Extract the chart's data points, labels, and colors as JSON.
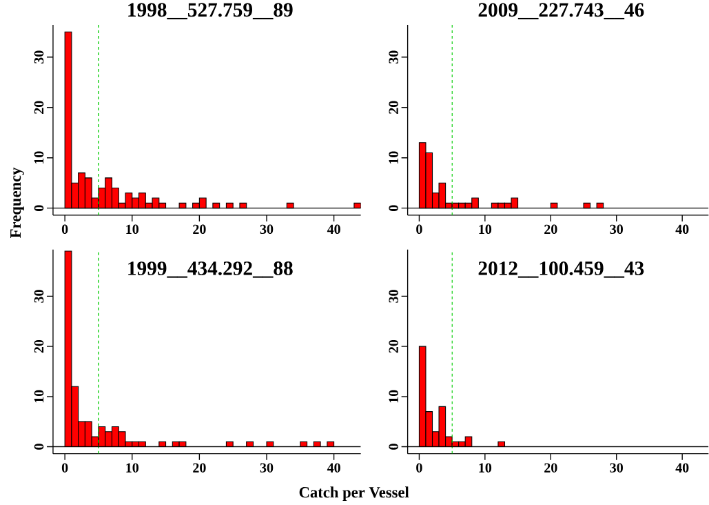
{
  "chart_data": [
    {
      "type": "histogram",
      "title": "1998__527.759__89",
      "ylabel": "Frequency",
      "bins": [
        0,
        1,
        2,
        3,
        4,
        5,
        6,
        7,
        8,
        9,
        10,
        11,
        12,
        13,
        14,
        15,
        16,
        17,
        18,
        19,
        20,
        21,
        22,
        23,
        24,
        25,
        26,
        27,
        28,
        29,
        30,
        31,
        32,
        33,
        34,
        35,
        36,
        37,
        38,
        39,
        40,
        41,
        42,
        43,
        44
      ],
      "values": [
        35,
        5,
        7,
        6,
        2,
        4,
        6,
        4,
        1,
        3,
        2,
        3,
        1,
        2,
        1,
        0,
        0,
        1,
        0,
        1,
        2,
        0,
        1,
        0,
        1,
        0,
        1,
        0,
        0,
        0,
        0,
        0,
        0,
        1,
        0,
        0,
        0,
        0,
        0,
        0,
        0,
        0,
        0,
        1
      ],
      "color": "#ff0000",
      "xlim": [
        -1.76,
        44
      ],
      "ylim": [
        -1.4,
        36.4
      ],
      "xticks": [
        0,
        10,
        20,
        30,
        40
      ],
      "yticks": [
        0,
        10,
        20,
        30
      ],
      "ref_lines": [
        {
          "axis": "x",
          "value": 5,
          "color": "#00cc00",
          "line_style": "dashed"
        },
        {
          "axis": "y",
          "value": 0,
          "color": "#000000",
          "line_style": "solid"
        }
      ]
    },
    {
      "type": "histogram",
      "title": "2009__227.743__46",
      "bins": [
        0,
        1,
        2,
        3,
        4,
        5,
        6,
        7,
        8,
        9,
        10,
        11,
        12,
        13,
        14,
        15,
        16,
        17,
        18,
        19,
        20,
        21,
        22,
        23,
        24,
        25,
        26,
        27,
        28,
        29,
        30,
        31,
        32,
        33,
        34,
        35,
        36,
        37,
        38,
        39,
        40,
        41,
        42,
        43,
        44
      ],
      "values": [
        13,
        11,
        3,
        5,
        1,
        1,
        1,
        1,
        2,
        0,
        0,
        1,
        1,
        1,
        2,
        0,
        0,
        0,
        0,
        0,
        1,
        0,
        0,
        0,
        0,
        1,
        0,
        1,
        0,
        0,
        0,
        0,
        0,
        0,
        0,
        0,
        0,
        0,
        0,
        0,
        0,
        0,
        0,
        0
      ],
      "color": "#ff0000",
      "xlim": [
        -1.76,
        44
      ],
      "ylim": [
        -1.4,
        36.4
      ],
      "xticks": [
        0,
        10,
        20,
        30,
        40
      ],
      "yticks": [
        0,
        10,
        20,
        30
      ],
      "ref_lines": [
        {
          "axis": "x",
          "value": 5,
          "color": "#00cc00",
          "line_style": "dashed"
        },
        {
          "axis": "y",
          "value": 0,
          "color": "#000000",
          "line_style": "solid"
        }
      ]
    },
    {
      "type": "histogram",
      "title": "1999__434.292__88",
      "xlabel": "Catch per Vessel",
      "bins": [
        0,
        1,
        2,
        3,
        4,
        5,
        6,
        7,
        8,
        9,
        10,
        11,
        12,
        13,
        14,
        15,
        16,
        17,
        18,
        19,
        20,
        21,
        22,
        23,
        24,
        25,
        26,
        27,
        28,
        29,
        30,
        31,
        32,
        33,
        34,
        35,
        36,
        37,
        38,
        39,
        40,
        41,
        42,
        43,
        44
      ],
      "values": [
        39,
        12,
        5,
        5,
        2,
        4,
        3,
        4,
        3,
        1,
        1,
        1,
        0,
        0,
        1,
        0,
        1,
        1,
        0,
        0,
        0,
        0,
        0,
        0,
        1,
        0,
        0,
        1,
        0,
        0,
        1,
        0,
        0,
        0,
        0,
        1,
        0,
        1,
        0,
        1,
        0,
        0,
        0,
        0
      ],
      "color": "#ff0000",
      "xlim": [
        -1.76,
        44
      ],
      "ylim": [
        -1.4,
        39.3
      ],
      "xticks": [
        0,
        10,
        20,
        30,
        40
      ],
      "yticks": [
        0,
        10,
        20,
        30
      ],
      "ref_lines": [
        {
          "axis": "x",
          "value": 5,
          "color": "#00cc00",
          "line_style": "dashed"
        },
        {
          "axis": "y",
          "value": 0,
          "color": "#000000",
          "line_style": "solid"
        }
      ]
    },
    {
      "type": "histogram",
      "title": "2012__100.459__43",
      "bins": [
        0,
        1,
        2,
        3,
        4,
        5,
        6,
        7,
        8,
        9,
        10,
        11,
        12,
        13,
        14,
        15,
        16,
        17,
        18,
        19,
        20,
        21,
        22,
        23,
        24,
        25,
        26,
        27,
        28,
        29,
        30,
        31,
        32,
        33,
        34,
        35,
        36,
        37,
        38,
        39,
        40,
        41,
        42,
        43,
        44
      ],
      "values": [
        20,
        7,
        3,
        8,
        2,
        1,
        1,
        2,
        0,
        0,
        0,
        0,
        1,
        0,
        0,
        0,
        0,
        0,
        0,
        0,
        0,
        0,
        0,
        0,
        0,
        0,
        0,
        0,
        0,
        0,
        0,
        0,
        0,
        0,
        0,
        0,
        0,
        0,
        0,
        0,
        0,
        0,
        0,
        0
      ],
      "color": "#ff0000",
      "xlim": [
        -1.76,
        44
      ],
      "ylim": [
        -1.4,
        39.3
      ],
      "xticks": [
        0,
        10,
        20,
        30,
        40
      ],
      "yticks": [
        0,
        10,
        20,
        30
      ],
      "ref_lines": [
        {
          "axis": "x",
          "value": 5,
          "color": "#00cc00",
          "line_style": "dashed"
        },
        {
          "axis": "y",
          "value": 0,
          "color": "#000000",
          "line_style": "solid"
        }
      ]
    }
  ]
}
